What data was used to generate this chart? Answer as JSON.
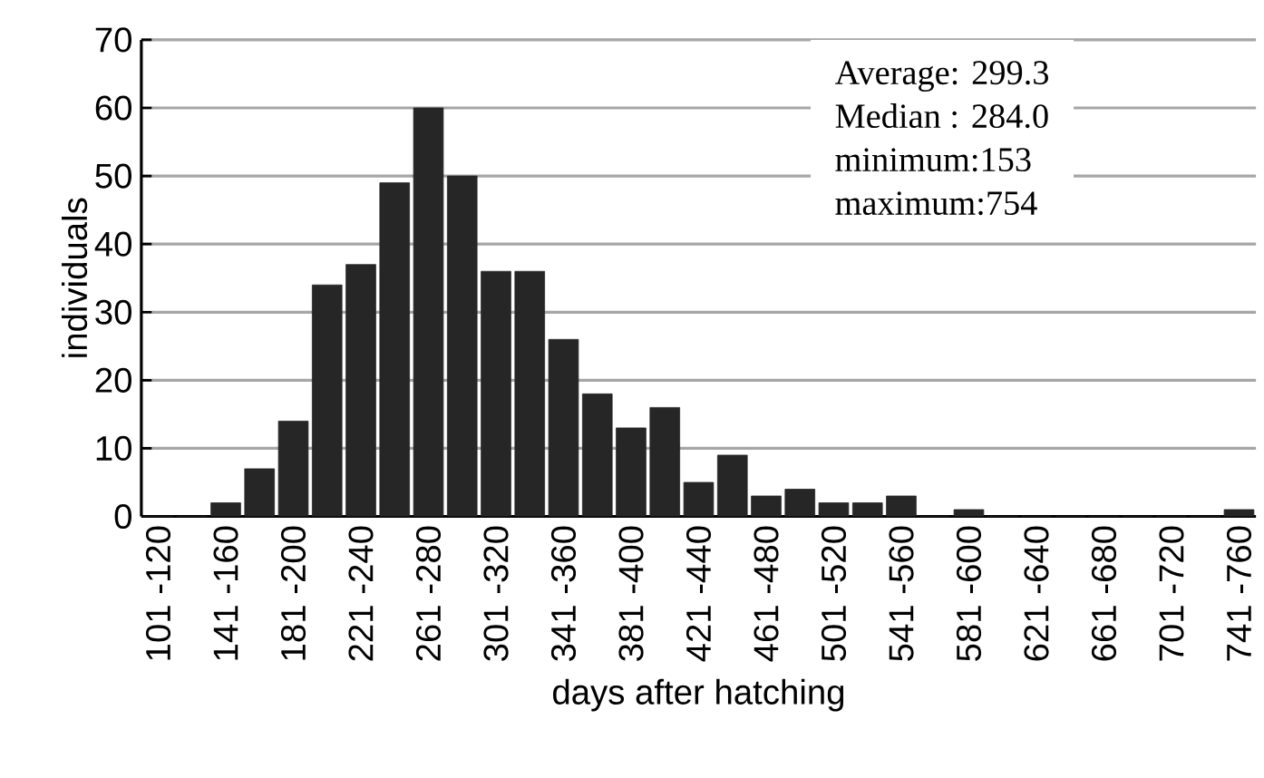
{
  "chart_data": {
    "type": "bar",
    "xlabel": "days after hatching",
    "ylabel": "individuals",
    "categories": [
      "101 -120",
      null,
      "141 -160",
      null,
      "181 -200",
      null,
      "221 -240",
      null,
      "261 -280",
      null,
      "301 -320",
      null,
      "341 -360",
      null,
      "381 -400",
      null,
      "421 -440",
      null,
      "461 -480",
      null,
      "501 -520",
      null,
      "541 -560",
      null,
      "581 -600",
      null,
      "621 -640",
      null,
      "661 -680",
      null,
      "701 -720",
      null,
      "741 -760"
    ],
    "values": [
      0,
      0,
      2,
      7,
      14,
      34,
      37,
      49,
      60,
      50,
      36,
      36,
      26,
      18,
      13,
      16,
      5,
      9,
      3,
      4,
      2,
      2,
      3,
      0,
      1,
      0,
      0,
      0,
      0,
      0,
      0,
      0,
      1
    ],
    "color": "#262626",
    "ylim": [
      0,
      70
    ],
    "yticks": [
      0,
      10,
      20,
      30,
      40,
      50,
      60,
      70
    ],
    "grid": "y",
    "annotations": [
      "Average: 299.3",
      "Median : 284.0",
      "minimum:153",
      "maximum:754"
    ]
  }
}
